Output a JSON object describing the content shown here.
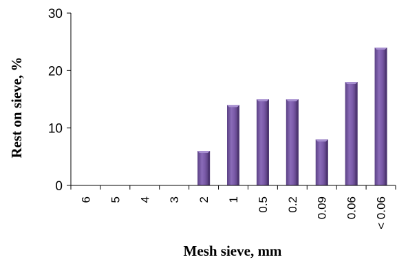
{
  "chart_data": {
    "type": "bar",
    "title": "",
    "xlabel": "Mesh sieve, mm",
    "ylabel": "Rest on sieve, %",
    "categories": [
      "6",
      "5",
      "4",
      "3",
      "2",
      "1",
      "0.5",
      "0.2",
      "0.09",
      "0.06",
      "< 0.06"
    ],
    "values": [
      0,
      0,
      0,
      0,
      6,
      14,
      15,
      15,
      8,
      18,
      24
    ],
    "ylim": [
      0,
      30
    ],
    "yticks": [
      "0",
      "10",
      "20",
      "30"
    ],
    "grid": false,
    "legend": "none",
    "bar_color": "#7b5aa6",
    "bar_color_dark": "#4e3672",
    "bar_color_light": "#a78fd0"
  }
}
